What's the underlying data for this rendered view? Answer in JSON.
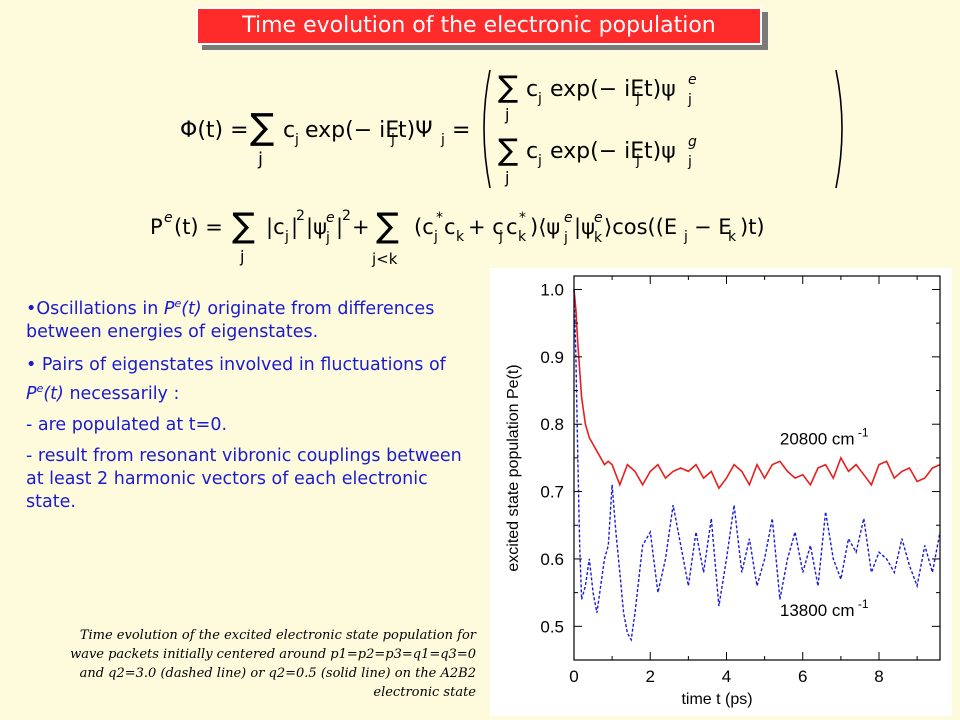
{
  "title": "Time evolution of the electronic population",
  "equations": {
    "wavefunction": "Φ(t) = Σ_j c_j exp(−iE_j t) Ψ_j = ( Σ_j c_j exp(−iE_j t) ψ_j^e ; Σ_j c_j exp(−iE_j t) ψ_j^g )",
    "population": "P^e(t) = Σ_j |c_j|² |ψ_j^e|² + Σ_{j<k} (c_j* c_k + c_j c_k*) ⟨ψ_j^e|ψ_k^e⟩ cos((E_j − E_k) t)"
  },
  "bullets": {
    "b1_pre": "•Oscillations in ",
    "b1_sym": "P",
    "b1_sup": "e",
    "b1_arg": "(t)",
    "b1_post": " originate from differences between energies of eigenstates.",
    "b2_pre": "• Pairs of eigenstates involved in fluctuations of ",
    "b2_sym": "P",
    "b2_sup": "e",
    "b2_arg": "(t)",
    "b2_post": " necessarily :",
    "b3": "- are populated at t=0.",
    "b4": "- result from resonant vibronic couplings between at least 2 harmonic vectors of each electronic state."
  },
  "caption": {
    "line1": "Time evolution of the excited electronic state population for",
    "line2": "wave packets initially centered  around p1=p2=p3=q1=q3=0",
    "line3": "and q2=3.0 (dashed line) or q2=0.5 (solid line) on the A2B2",
    "line4": "electronic state"
  },
  "chart_data": {
    "type": "line",
    "xlabel": "time t  (ps)",
    "ylabel": "excited state population Pe(t)",
    "xlim": [
      0,
      9.6
    ],
    "ylim": [
      0.45,
      1.02
    ],
    "xticks": [
      0,
      2,
      4,
      6,
      8
    ],
    "yticks": [
      0.5,
      0.6,
      0.7,
      0.8,
      0.9,
      1.0
    ],
    "xtick_labels": [
      "0",
      "2",
      "4",
      "6",
      "8"
    ],
    "ytick_labels": [
      "0.5",
      "0.6",
      "0.7",
      "0.8",
      "0.9",
      "1.0"
    ],
    "grid": false,
    "annotations": [
      {
        "text": "20800 cm",
        "sup": "-1",
        "x": 5.4,
        "y": 0.77
      },
      {
        "text": "13800 cm",
        "sup": "-1",
        "x": 5.4,
        "y": 0.515
      }
    ],
    "series": [
      {
        "style": "solid",
        "color": "#e81e1e",
        "x": [
          0,
          0.05,
          0.1,
          0.15,
          0.2,
          0.3,
          0.4,
          0.5,
          0.6,
          0.7,
          0.8,
          0.9,
          1.0,
          1.2,
          1.4,
          1.6,
          1.8,
          2.0,
          2.2,
          2.4,
          2.6,
          2.8,
          3.0,
          3.2,
          3.4,
          3.6,
          3.8,
          4.0,
          4.2,
          4.4,
          4.6,
          4.8,
          5.0,
          5.2,
          5.4,
          5.6,
          5.8,
          6.0,
          6.2,
          6.4,
          6.6,
          6.8,
          7.0,
          7.2,
          7.4,
          7.6,
          7.8,
          8.0,
          8.2,
          8.4,
          8.6,
          8.8,
          9.0,
          9.2,
          9.4,
          9.6
        ],
        "values": [
          1.0,
          0.97,
          0.92,
          0.88,
          0.84,
          0.8,
          0.78,
          0.77,
          0.76,
          0.75,
          0.74,
          0.745,
          0.74,
          0.71,
          0.74,
          0.73,
          0.71,
          0.73,
          0.74,
          0.72,
          0.73,
          0.735,
          0.73,
          0.74,
          0.72,
          0.73,
          0.705,
          0.72,
          0.74,
          0.73,
          0.71,
          0.74,
          0.72,
          0.74,
          0.745,
          0.73,
          0.72,
          0.725,
          0.71,
          0.735,
          0.74,
          0.72,
          0.75,
          0.73,
          0.74,
          0.725,
          0.71,
          0.74,
          0.745,
          0.72,
          0.73,
          0.735,
          0.715,
          0.72,
          0.735,
          0.74
        ]
      },
      {
        "style": "dashed",
        "color": "#1a1ad8",
        "x": [
          0,
          0.05,
          0.1,
          0.15,
          0.2,
          0.3,
          0.4,
          0.5,
          0.6,
          0.7,
          0.8,
          0.9,
          1.0,
          1.1,
          1.2,
          1.3,
          1.4,
          1.5,
          1.6,
          1.7,
          1.8,
          2.0,
          2.2,
          2.4,
          2.6,
          2.8,
          3.0,
          3.2,
          3.4,
          3.6,
          3.8,
          4.0,
          4.2,
          4.4,
          4.6,
          4.8,
          5.0,
          5.2,
          5.4,
          5.6,
          5.8,
          6.0,
          6.2,
          6.4,
          6.6,
          6.8,
          7.0,
          7.2,
          7.4,
          7.6,
          7.8,
          8.0,
          8.2,
          8.4,
          8.6,
          8.8,
          9.0,
          9.2,
          9.4,
          9.6
        ],
        "values": [
          1.0,
          0.9,
          0.75,
          0.62,
          0.54,
          0.56,
          0.6,
          0.55,
          0.52,
          0.56,
          0.6,
          0.62,
          0.71,
          0.64,
          0.58,
          0.52,
          0.49,
          0.48,
          0.52,
          0.57,
          0.62,
          0.64,
          0.55,
          0.6,
          0.68,
          0.62,
          0.56,
          0.64,
          0.58,
          0.66,
          0.53,
          0.6,
          0.68,
          0.58,
          0.63,
          0.56,
          0.6,
          0.66,
          0.54,
          0.6,
          0.64,
          0.58,
          0.62,
          0.56,
          0.67,
          0.6,
          0.57,
          0.63,
          0.61,
          0.66,
          0.58,
          0.61,
          0.6,
          0.58,
          0.63,
          0.59,
          0.56,
          0.62,
          0.58,
          0.64
        ]
      }
    ]
  }
}
